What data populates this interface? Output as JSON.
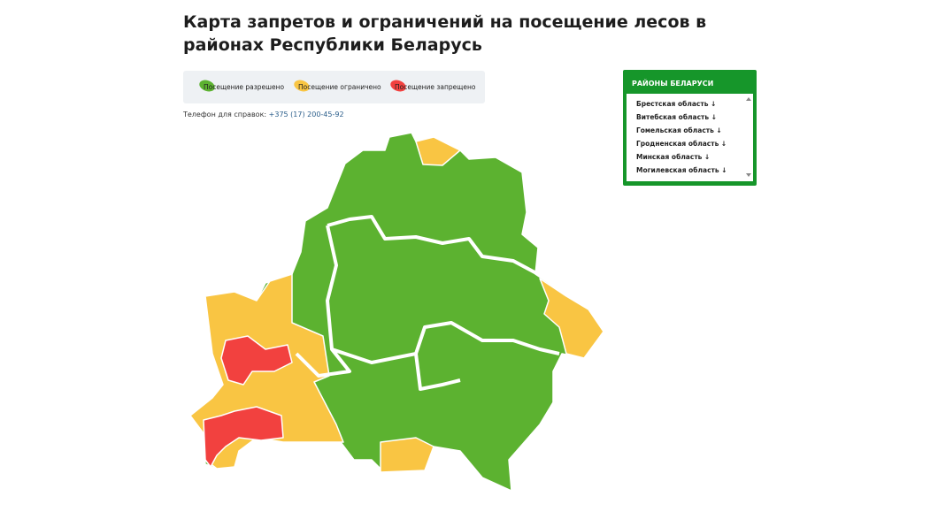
{
  "header": {
    "title": "Карта запретов и ограничений на посещение лесов в районах Республики Беларусь"
  },
  "legend": {
    "items": [
      {
        "label": "Посещение разрешено",
        "color": "#5cb230"
      },
      {
        "label": "Посещение ограничено",
        "color": "#f9c543"
      },
      {
        "label": "Посещение запрещено",
        "color": "#f2413f"
      }
    ]
  },
  "phone": {
    "label": "Телефон для справок:",
    "number": "+375 (17) 200-45-92"
  },
  "regions_panel": {
    "title": "РАЙОНЫ БЕЛАРУСИ",
    "items": [
      "Брестская область ↓",
      "Витебская область ↓",
      "Гомельская область ↓",
      "Гродненская область ↓",
      "Минская область ↓",
      "Могилевская область ↓"
    ]
  }
}
